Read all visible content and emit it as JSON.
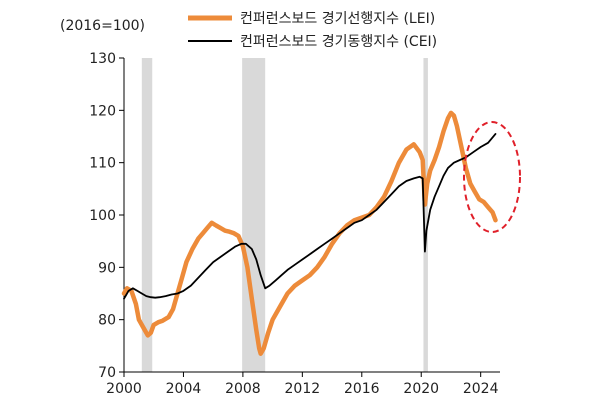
{
  "chart_data": {
    "type": "line",
    "unit_label": "(2016=100)",
    "ylim": [
      70,
      130
    ],
    "yticks": [
      70,
      80,
      90,
      100,
      110,
      120,
      130
    ],
    "xlim": [
      2000,
      2025.3
    ],
    "xticks": [
      2000,
      2004,
      2008,
      2012,
      2016,
      2020,
      2024
    ],
    "recessions": [
      [
        2001.2,
        2001.9
      ],
      [
        2007.95,
        2009.5
      ],
      [
        2020.15,
        2020.45
      ]
    ],
    "legend_position": "top-center",
    "grid": false,
    "series": [
      {
        "name": "컨퍼런스보드 경기선행지수 (LEI)",
        "color": "#ed8b3a",
        "x": [
          2000.0,
          2000.2,
          2000.5,
          2000.8,
          2001.0,
          2001.3,
          2001.6,
          2001.8,
          2002.0,
          2002.3,
          2002.6,
          2003.0,
          2003.3,
          2003.6,
          2003.9,
          2004.2,
          2004.6,
          2005.0,
          2005.3,
          2005.6,
          2005.9,
          2006.2,
          2006.5,
          2006.8,
          2007.1,
          2007.4,
          2007.7,
          2008.0,
          2008.3,
          2008.6,
          2008.9,
          2009.1,
          2009.2,
          2009.4,
          2009.7,
          2010.0,
          2010.5,
          2011.0,
          2011.5,
          2012.0,
          2012.5,
          2013.0,
          2013.5,
          2014.0,
          2014.5,
          2015.0,
          2015.5,
          2016.0,
          2016.5,
          2017.0,
          2017.5,
          2018.0,
          2018.5,
          2019.0,
          2019.5,
          2019.9,
          2020.1,
          2020.25,
          2020.4,
          2020.6,
          2020.9,
          2021.2,
          2021.5,
          2021.8,
          2022.0,
          2022.2,
          2022.4,
          2022.7,
          2023.0,
          2023.3,
          2023.6,
          2023.9,
          2024.2,
          2024.5,
          2024.8,
          2025.0
        ],
        "values": [
          85.0,
          86.0,
          85.5,
          83.0,
          80.0,
          78.5,
          77.0,
          77.5,
          79.0,
          79.5,
          79.8,
          80.5,
          82.0,
          85.0,
          88.0,
          91.0,
          93.5,
          95.5,
          96.5,
          97.5,
          98.5,
          98.0,
          97.5,
          97.0,
          96.8,
          96.5,
          96.0,
          94.0,
          90.0,
          84.0,
          78.0,
          74.5,
          73.5,
          74.5,
          77.5,
          80.0,
          82.5,
          85.0,
          86.5,
          87.5,
          88.5,
          90.0,
          92.0,
          94.5,
          96.5,
          98.0,
          99.0,
          99.5,
          100.0,
          101.5,
          103.5,
          106.5,
          110.0,
          112.5,
          113.5,
          112.0,
          110.5,
          102.0,
          106.0,
          108.5,
          110.5,
          113.0,
          116.0,
          118.5,
          119.5,
          119.0,
          117.0,
          113.0,
          109.0,
          106.0,
          104.5,
          103.0,
          102.5,
          101.5,
          100.5,
          99.0
        ]
      },
      {
        "name": "컨퍼런스보드 경기동행지수 (CEI)",
        "color": "#000000",
        "x": [
          2000.0,
          2000.3,
          2000.6,
          2000.9,
          2001.2,
          2001.5,
          2001.8,
          2002.1,
          2002.4,
          2002.8,
          2003.2,
          2003.6,
          2004.0,
          2004.5,
          2005.0,
          2005.5,
          2006.0,
          2006.5,
          2007.0,
          2007.5,
          2007.9,
          2008.2,
          2008.6,
          2008.9,
          2009.2,
          2009.5,
          2009.8,
          2010.2,
          2010.6,
          2011.0,
          2011.5,
          2012.0,
          2012.5,
          2013.0,
          2013.5,
          2014.0,
          2014.5,
          2015.0,
          2015.5,
          2016.0,
          2016.5,
          2017.0,
          2017.5,
          2018.0,
          2018.5,
          2019.0,
          2019.5,
          2019.9,
          2020.1,
          2020.25,
          2020.35,
          2020.6,
          2020.9,
          2021.2,
          2021.5,
          2021.8,
          2022.2,
          2022.6,
          2023.0,
          2023.5,
          2024.0,
          2024.5,
          2025.0
        ],
        "values": [
          84.0,
          85.5,
          86.0,
          85.5,
          85.0,
          84.5,
          84.3,
          84.2,
          84.3,
          84.5,
          84.8,
          85.0,
          85.5,
          86.5,
          88.0,
          89.5,
          91.0,
          92.0,
          93.0,
          94.0,
          94.5,
          94.5,
          93.5,
          91.5,
          88.5,
          86.0,
          86.5,
          87.5,
          88.5,
          89.5,
          90.5,
          91.5,
          92.5,
          93.5,
          94.5,
          95.5,
          96.5,
          97.5,
          98.5,
          99.0,
          100.0,
          101.0,
          102.5,
          104.0,
          105.5,
          106.5,
          107.0,
          107.3,
          107.0,
          93.0,
          97.0,
          101.0,
          103.5,
          105.5,
          107.5,
          109.0,
          110.0,
          110.5,
          111.0,
          112.0,
          113.0,
          113.8,
          115.5
        ]
      }
    ]
  }
}
